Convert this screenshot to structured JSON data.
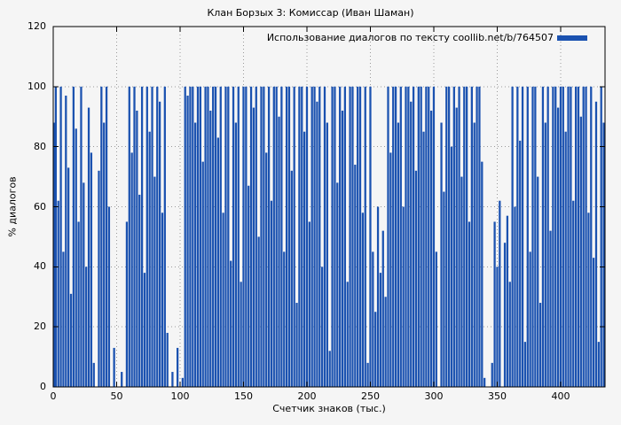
{
  "title": "Клан Борзых 3: Комиссар (Иван Шаман)",
  "legend": {
    "label": "Использование диалогов по тексту coollib.net/b/764507"
  },
  "colors": {
    "background": "#f5f5f5",
    "bar": "#1b52b0",
    "grid": "#9a9a9a",
    "axis": "#000000"
  },
  "chart_data": {
    "type": "bar",
    "title": "Клан Борзых 3: Комиссар (Иван Шаман)",
    "xlabel": "Счетчик знаков (тыс.)",
    "ylabel": "% диалогов",
    "xlim": [
      0,
      435
    ],
    "ylim": [
      0,
      120
    ],
    "x_ticks": [
      0,
      50,
      100,
      150,
      200,
      250,
      300,
      350,
      400
    ],
    "y_ticks": [
      0,
      20,
      40,
      60,
      80,
      100,
      120
    ],
    "grid": "dotted",
    "legend_position": "top-right",
    "bar_color": "#1b52b0",
    "series": [
      {
        "name": "Использование диалогов по тексту coollib.net/b/764507",
        "x_start": 0,
        "x_step": 2,
        "values": [
          88,
          100,
          62,
          100,
          45,
          97,
          73,
          31,
          100,
          86,
          55,
          100,
          68,
          40,
          93,
          78,
          8,
          0,
          72,
          100,
          88,
          100,
          60,
          0,
          13,
          0,
          0,
          5,
          0,
          55,
          100,
          78,
          100,
          92,
          64,
          100,
          38,
          100,
          85,
          100,
          70,
          100,
          95,
          58,
          100,
          18,
          0,
          5,
          0,
          13,
          0,
          3,
          100,
          97,
          100,
          100,
          88,
          100,
          100,
          75,
          100,
          100,
          92,
          100,
          100,
          83,
          100,
          58,
          100,
          100,
          42,
          100,
          88,
          100,
          35,
          100,
          100,
          67,
          100,
          93,
          100,
          50,
          100,
          100,
          78,
          100,
          62,
          100,
          100,
          90,
          100,
          45,
          100,
          100,
          72,
          100,
          28,
          100,
          100,
          85,
          100,
          55,
          100,
          100,
          95,
          100,
          40,
          100,
          88,
          12,
          100,
          100,
          68,
          100,
          92,
          100,
          35,
          100,
          100,
          74,
          100,
          100,
          58,
          100,
          8,
          100,
          45,
          25,
          60,
          38,
          52,
          30,
          100,
          78,
          100,
          100,
          88,
          100,
          60,
          100,
          100,
          95,
          100,
          72,
          100,
          100,
          85,
          100,
          100,
          92,
          100,
          45,
          0,
          88,
          65,
          100,
          100,
          80,
          100,
          93,
          100,
          70,
          100,
          100,
          55,
          100,
          88,
          100,
          100,
          75,
          3,
          0,
          0,
          8,
          55,
          40,
          62,
          0,
          48,
          57,
          35,
          100,
          60,
          100,
          82,
          100,
          15,
          100,
          45,
          100,
          100,
          70,
          28,
          100,
          88,
          100,
          52,
          100,
          100,
          93,
          100,
          100,
          85,
          100,
          100,
          62,
          100,
          100,
          90,
          100,
          100,
          58,
          100,
          43,
          95,
          15,
          100,
          88
        ]
      }
    ]
  }
}
